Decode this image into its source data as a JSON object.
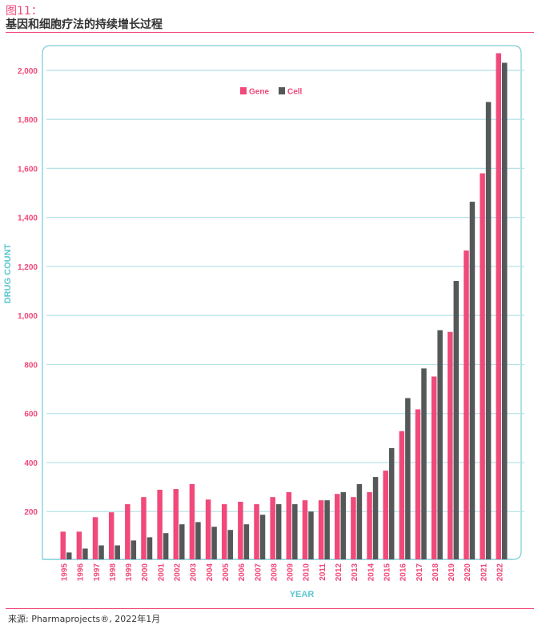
{
  "header": {
    "figure_label": "图11：",
    "title": "基因和细胞疗法的持续增长过程"
  },
  "footer": {
    "source": "来源: Pharmaprojects®, 2022年1月"
  },
  "chart_data": {
    "type": "bar",
    "title": "",
    "xlabel": "YEAR",
    "ylabel": "DRUG COUNT",
    "ylim": [
      0,
      2100
    ],
    "yticks": [
      200,
      400,
      600,
      800,
      1000,
      1200,
      1400,
      1600,
      1800,
      2000
    ],
    "ytick_labels": [
      "200",
      "400",
      "600",
      "800",
      "1,000",
      "1,200",
      "1,400",
      "1,600",
      "1,800",
      "2,000"
    ],
    "grid": true,
    "legend_position": "top-center",
    "categories": [
      "1995",
      "1996",
      "1997",
      "1998",
      "1999",
      "2000",
      "2001",
      "2002",
      "2003",
      "2004",
      "2005",
      "2006",
      "2007",
      "2008",
      "2009",
      "2010",
      "2011",
      "2012",
      "2013",
      "2014",
      "2015",
      "2016",
      "2017",
      "2018",
      "2019",
      "2020",
      "2021",
      "2022"
    ],
    "series": [
      {
        "name": "Gene",
        "color": "#f0497a",
        "values": [
          118,
          118,
          177,
          197,
          230,
          259,
          289,
          292,
          312,
          249,
          230,
          240,
          230,
          259,
          279,
          246,
          246,
          272,
          259,
          279,
          367,
          528,
          617,
          751,
          933,
          1265,
          1580,
          2070
        ]
      },
      {
        "name": "Cell",
        "color": "#555859",
        "values": [
          33,
          49,
          62,
          62,
          82,
          95,
          112,
          148,
          157,
          138,
          125,
          148,
          187,
          230,
          230,
          200,
          246,
          279,
          312,
          341,
          459,
          663,
          784,
          940,
          1141,
          1464,
          1871,
          2031
        ]
      }
    ],
    "colors": {
      "axis": "#7ccfd8",
      "grid": "#b7e2e8",
      "tick_label": "#f0497a",
      "axis_title": "#5cc6d0"
    }
  }
}
